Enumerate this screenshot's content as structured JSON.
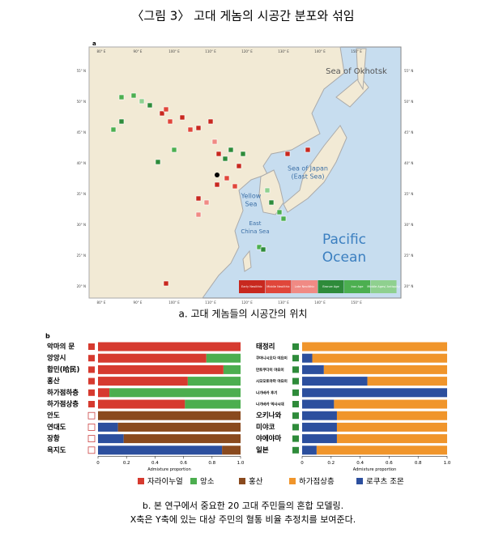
{
  "title": "〈그림 3〉 고대 게놈의 시공간 분포와 섞임",
  "map": {
    "panel": "a",
    "labels": [
      "Sea of Okhotsk",
      "Sea of Japan",
      "(East Sea)",
      "Yellow",
      "Sea",
      "East",
      "China Sea",
      "Pacific",
      "Ocean"
    ],
    "lon_labels": [
      "80° E",
      "90° E",
      "100° E",
      "110° E",
      "120° E",
      "130° E",
      "140° E",
      "150° E"
    ],
    "lat_labels": [
      "55° N",
      "50° N",
      "45° N",
      "40° N",
      "35° N",
      "30° N",
      "25° N",
      "20° N"
    ],
    "legend": [
      {
        "name": "Early Neolithic",
        "color": "#c8281e"
      },
      {
        "name": "Middle Neolithic",
        "color": "#e0463a"
      },
      {
        "name": "Late Neolithic",
        "color": "#f08a84"
      },
      {
        "name": "Bronze Age",
        "color": "#2e8b3a"
      },
      {
        "name": "Iron Age",
        "color": "#4caf50"
      },
      {
        "name": "Middle Ages/ Antiquity",
        "color": "#8fd08f"
      }
    ]
  },
  "caption_a": "a. 고대 게놈들의 시공간의 위치",
  "panel_b": "b",
  "chart_data": [
    {
      "type": "bar",
      "orientation": "horizontal",
      "stacked": true,
      "xlabel": "Admixture proportion",
      "categories": [
        "악마의 문",
        "앙앙시",
        "합민(哈民)",
        "홍산",
        "하가점하층",
        "하가점상층",
        "안도",
        "연대도",
        "장항",
        "욕지도"
      ],
      "series": [
        {
          "name": "로쿠츠 조몬",
          "color": "#2c4f9e",
          "values": [
            0,
            0,
            0,
            0,
            0,
            0,
            0,
            0.14,
            0.18,
            0.87
          ]
        },
        {
          "name": "자라이누얼",
          "color": "#d63a2f",
          "values": [
            1,
            0.76,
            0.88,
            0.63,
            0.08,
            0.61,
            0,
            0,
            0,
            0
          ]
        },
        {
          "name": "앙소",
          "color": "#4cae4f",
          "values": [
            0,
            0.24,
            0.12,
            0.37,
            0.92,
            0.39,
            0,
            0,
            0,
            0
          ]
        },
        {
          "name": "홍산",
          "color": "#8a4a1e",
          "values": [
            0,
            0,
            0,
            0,
            0,
            0,
            1,
            0.86,
            0.82,
            0.13
          ]
        },
        {
          "name": "하가점상층",
          "color": "#f0952b",
          "values": [
            0,
            0,
            0,
            0,
            0,
            0,
            0,
            0,
            0,
            0
          ]
        }
      ],
      "xlim": [
        0,
        1
      ],
      "xticks": [
        0,
        0.2,
        0.4,
        0.6,
        0.8,
        {
          "value": 1,
          "label": "1.0"
        }
      ]
    },
    {
      "type": "bar",
      "orientation": "horizontal",
      "stacked": true,
      "xlabel": "Admixture proportion",
      "categories": [
        "태정리",
        "쿠마니시오다 야요이",
        "만토쿠다이 야요이",
        "시모모토야마 야요이",
        "나가바카 후기",
        "나가바카 역사시대",
        "오키나와",
        "미야코",
        "야에야마",
        "일본"
      ],
      "series": [
        {
          "name": "로쿠츠 조몬",
          "color": "#2c4f9e",
          "values": [
            0,
            0.07,
            0.15,
            0.45,
            1,
            0.22,
            0.24,
            0.24,
            0.24,
            0.1
          ]
        },
        {
          "name": "하가점상층",
          "color": "#f0952b",
          "values": [
            1,
            0.93,
            0.85,
            0.55,
            0,
            0.78,
            0.76,
            0.76,
            0.76,
            0.9
          ]
        }
      ],
      "xlim": [
        0,
        1
      ],
      "xticks": [
        0,
        0.2,
        0.4,
        0.6,
        0.8,
        {
          "value": 1,
          "label": "1.0"
        }
      ]
    }
  ],
  "caption_b": [
    "b. 본 연구에서 중요한 20 고대 주민들의 혼합 모델링.",
    "X축은 Y축에 있는 대상 주민의 혈통 비율 추정치를 보여준다."
  ]
}
